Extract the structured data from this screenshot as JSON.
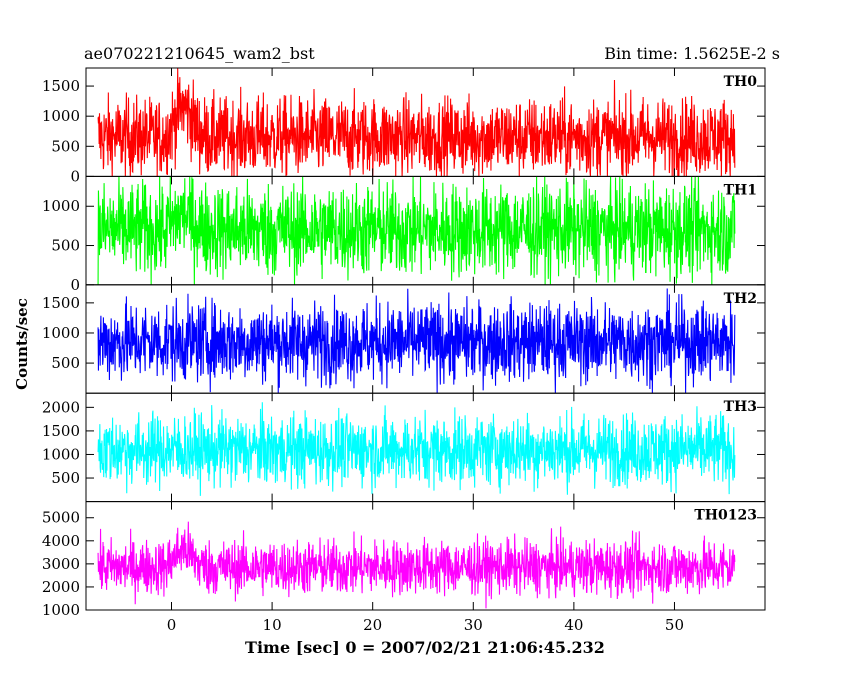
{
  "header": {
    "obs_id": "ae070221210645_wam2_bst",
    "bin_time": "Bin time: 1.5625E-2 s"
  },
  "chart_data": {
    "type": "line",
    "xlabel": "Time [sec] 0 = 2007/02/21 21:06:45.232",
    "ylabel": "Counts/sec",
    "xlim": [
      -8.5,
      59
    ],
    "xticks": [
      0,
      10,
      20,
      30,
      40,
      50
    ],
    "grid": false,
    "data_range": [
      -7.3,
      56
    ],
    "series": [
      {
        "name": "TH0",
        "color": "#ff0000",
        "ylim": [
          0,
          1800
        ],
        "yticks": [
          0,
          500,
          1000,
          1500
        ],
        "baseline": 650,
        "noise": 330,
        "burst": 500
      },
      {
        "name": "TH1",
        "color": "#00ff00",
        "ylim": [
          0,
          1380
        ],
        "yticks": [
          0,
          500,
          1000
        ],
        "baseline": 700,
        "noise": 300,
        "burst": 200
      },
      {
        "name": "TH2",
        "color": "#0000ff",
        "ylim": [
          0,
          1800
        ],
        "yticks": [
          500,
          1000,
          1500
        ],
        "baseline": 850,
        "noise": 330,
        "burst": 0
      },
      {
        "name": "TH3",
        "color": "#00ffff",
        "ylim": [
          0,
          2300
        ],
        "yticks": [
          500,
          1000,
          1500,
          2000
        ],
        "baseline": 1100,
        "noise": 380,
        "burst": 0
      },
      {
        "name": "TH0123",
        "color": "#ff00ff",
        "ylim": [
          1000,
          5700
        ],
        "yticks": [
          1000,
          2000,
          3000,
          4000,
          5000
        ],
        "baseline": 2850,
        "noise": 600,
        "burst": 800
      }
    ]
  }
}
